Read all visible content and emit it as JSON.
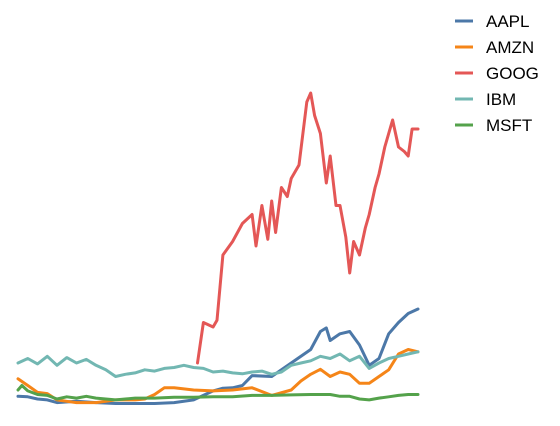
{
  "chart_data": {
    "type": "line",
    "title": "",
    "xlabel": "",
    "ylabel": "",
    "x_range": [
      2000.0,
      2010.25
    ],
    "ylim": [
      0,
      800
    ],
    "grid": false,
    "axes_visible": false,
    "legend_position": "top-right",
    "series": [
      {
        "name": "AAPL",
        "color": "#4c78a8",
        "x": [
          2000.0,
          2000.25,
          2000.5,
          2000.75,
          2001.0,
          2001.5,
          2002.0,
          2002.5,
          2003.0,
          2003.5,
          2004.0,
          2004.5,
          2005.0,
          2005.25,
          2005.5,
          2005.75,
          2006.0,
          2006.5,
          2007.0,
          2007.5,
          2007.75,
          2007.9,
          2008.0,
          2008.25,
          2008.5,
          2008.75,
          2009.0,
          2009.25,
          2009.5,
          2009.75,
          2010.0,
          2010.25
        ],
        "y": [
          26,
          25,
          20,
          18,
          12,
          15,
          12,
          10,
          10,
          10,
          12,
          18,
          38,
          44,
          45,
          50,
          72,
          70,
          100,
          130,
          170,
          178,
          150,
          165,
          170,
          140,
          95,
          110,
          165,
          190,
          210,
          220
        ]
      },
      {
        "name": "AMZN",
        "color": "#f58518",
        "x": [
          2000.0,
          2000.25,
          2000.5,
          2000.75,
          2001.0,
          2001.25,
          2001.5,
          2002.0,
          2002.5,
          2003.0,
          2003.25,
          2003.5,
          2003.75,
          2004.0,
          2004.5,
          2005.0,
          2005.5,
          2006.0,
          2006.5,
          2007.0,
          2007.25,
          2007.5,
          2007.75,
          2008.0,
          2008.25,
          2008.5,
          2008.75,
          2009.0,
          2009.25,
          2009.5,
          2009.75,
          2010.0,
          2010.25
        ],
        "y": [
          65,
          50,
          35,
          32,
          18,
          15,
          12,
          12,
          18,
          18,
          20,
          30,
          45,
          45,
          40,
          38,
          40,
          45,
          28,
          40,
          60,
          75,
          86,
          70,
          80,
          75,
          55,
          55,
          70,
          85,
          120,
          130,
          125
        ]
      },
      {
        "name": "GOOG",
        "color": "#e45756",
        "x": [
          2004.6,
          2004.75,
          2005.0,
          2005.1,
          2005.25,
          2005.5,
          2005.75,
          2006.0,
          2006.1,
          2006.25,
          2006.4,
          2006.5,
          2006.6,
          2006.75,
          2006.9,
          2007.0,
          2007.2,
          2007.4,
          2007.5,
          2007.6,
          2007.75,
          2007.9,
          2008.0,
          2008.15,
          2008.25,
          2008.4,
          2008.5,
          2008.6,
          2008.75,
          2008.9,
          2009.0,
          2009.15,
          2009.25,
          2009.4,
          2009.5,
          2009.6,
          2009.75,
          2009.9,
          2010.0,
          2010.1,
          2010.25
        ],
        "y": [
          100,
          190,
          180,
          195,
          340,
          370,
          410,
          430,
          360,
          450,
          375,
          460,
          390,
          490,
          470,
          510,
          540,
          680,
          700,
          650,
          610,
          500,
          560,
          450,
          450,
          380,
          300,
          370,
          340,
          400,
          430,
          490,
          520,
          580,
          610,
          640,
          580,
          570,
          560,
          620,
          620
        ]
      },
      {
        "name": "IBM",
        "color": "#72b7b2",
        "x": [
          2000.0,
          2000.25,
          2000.5,
          2000.75,
          2001.0,
          2001.25,
          2001.5,
          2001.75,
          2002.0,
          2002.25,
          2002.5,
          2002.75,
          2003.0,
          2003.25,
          2003.5,
          2003.75,
          2004.0,
          2004.25,
          2004.5,
          2004.75,
          2005.0,
          2005.25,
          2005.5,
          2005.75,
          2006.0,
          2006.25,
          2006.5,
          2006.75,
          2007.0,
          2007.25,
          2007.5,
          2007.75,
          2008.0,
          2008.25,
          2008.5,
          2008.75,
          2009.0,
          2009.25,
          2009.5,
          2009.75,
          2010.0,
          2010.25
        ],
        "y": [
          100,
          110,
          98,
          115,
          95,
          112,
          100,
          108,
          95,
          85,
          70,
          75,
          78,
          85,
          82,
          88,
          90,
          95,
          90,
          88,
          80,
          82,
          78,
          76,
          80,
          82,
          75,
          80,
          95,
          100,
          105,
          115,
          110,
          120,
          105,
          115,
          88,
          100,
          110,
          115,
          120,
          125
        ]
      },
      {
        "name": "MSFT",
        "color": "#54a24b",
        "x": [
          2000.0,
          2000.1,
          2000.25,
          2000.5,
          2000.75,
          2001.0,
          2001.25,
          2001.5,
          2001.75,
          2002.0,
          2002.5,
          2003.0,
          2003.5,
          2004.0,
          2004.5,
          2005.0,
          2005.5,
          2006.0,
          2006.5,
          2007.0,
          2007.5,
          2008.0,
          2008.25,
          2008.5,
          2008.75,
          2009.0,
          2009.25,
          2009.5,
          2009.75,
          2010.0,
          2010.25
        ],
        "y": [
          40,
          50,
          38,
          30,
          28,
          20,
          25,
          22,
          26,
          22,
          18,
          22,
          22,
          24,
          24,
          25,
          25,
          28,
          28,
          29,
          30,
          30,
          26,
          26,
          20,
          18,
          22,
          25,
          28,
          30,
          30
        ]
      }
    ]
  }
}
